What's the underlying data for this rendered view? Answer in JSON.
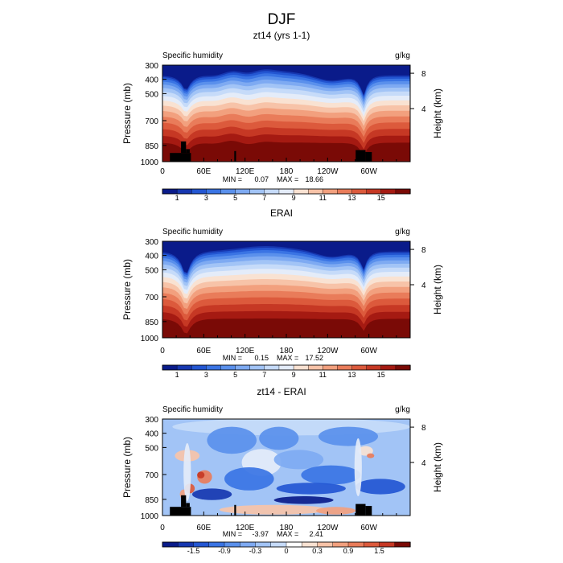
{
  "figure_title": "DJF",
  "chart_data": [
    {
      "type": "heatmap",
      "panel_title": "zt14 (yrs 1-1)",
      "left_label": "Specific humidity",
      "right_label": "g/kg",
      "ylabel": "Pressure (mb)",
      "y2label": "Height (km)",
      "y_ticks": [
        "300",
        "400",
        "500",
        "700",
        "850",
        "1000"
      ],
      "y2_ticks": [
        "8",
        "4"
      ],
      "x_ticks": [
        "0",
        "60E",
        "120E",
        "180",
        "120W",
        "60W"
      ],
      "min_label": "MIN =",
      "min_value": "0.07",
      "max_label": "MAX =",
      "max_value": "18.66",
      "colorbar_levels": [
        0.5,
        1,
        2,
        3,
        4,
        5,
        6,
        7,
        8,
        9,
        10,
        11,
        12,
        13,
        14,
        15,
        16
      ],
      "colorbar_labels": [
        "1",
        "3",
        "5",
        "7",
        "9",
        "11",
        "13",
        "15"
      ],
      "colors": [
        "#0a1b8a",
        "#1637b0",
        "#2356d2",
        "#3a74e4",
        "#5a90ec",
        "#7eaaf2",
        "#a2c4f6",
        "#c6dbf9",
        "#e4ecf9",
        "#f9e2d2",
        "#f7c3a8",
        "#f2a07e",
        "#e97c5a",
        "#dc5a3c",
        "#c63824",
        "#a51a12",
        "#7a0a06"
      ],
      "data_range": [
        0.07,
        18.66
      ],
      "topography": true
    },
    {
      "type": "heatmap",
      "panel_title": "ERAI",
      "left_label": "Specific humidity",
      "right_label": "g/kg",
      "ylabel": "Pressure (mb)",
      "y2label": "Height (km)",
      "y_ticks": [
        "300",
        "400",
        "500",
        "700",
        "850",
        "1000"
      ],
      "y2_ticks": [
        "8",
        "4"
      ],
      "x_ticks": [
        "0",
        "60E",
        "120E",
        "180",
        "120W",
        "60W"
      ],
      "min_label": "MIN =",
      "min_value": "0.15",
      "max_label": "MAX =",
      "max_value": "17.52",
      "colorbar_levels": [
        0.5,
        1,
        2,
        3,
        4,
        5,
        6,
        7,
        8,
        9,
        10,
        11,
        12,
        13,
        14,
        15,
        16
      ],
      "colorbar_labels": [
        "1",
        "3",
        "5",
        "7",
        "9",
        "11",
        "13",
        "15"
      ],
      "colors": [
        "#0a1b8a",
        "#1637b0",
        "#2356d2",
        "#3a74e4",
        "#5a90ec",
        "#7eaaf2",
        "#a2c4f6",
        "#c6dbf9",
        "#e4ecf9",
        "#f9e2d2",
        "#f7c3a8",
        "#f2a07e",
        "#e97c5a",
        "#dc5a3c",
        "#c63824",
        "#a51a12",
        "#7a0a06"
      ],
      "data_range": [
        0.15,
        17.52
      ],
      "topography": false
    },
    {
      "type": "heatmap",
      "panel_title": "zt14 - ERAI",
      "left_label": "Specific humidity",
      "right_label": "g/kg",
      "ylabel": "Pressure (mb)",
      "y2label": "Height (km)",
      "y_ticks": [
        "300",
        "400",
        "500",
        "700",
        "850",
        "1000"
      ],
      "y2_ticks": [
        "8",
        "4"
      ],
      "x_ticks": [
        "0",
        "60E",
        "120E",
        "180",
        "120W",
        "60W"
      ],
      "min_label": "MIN =",
      "min_value": "-3.97",
      "max_label": "MAX =",
      "max_value": "2.41",
      "colorbar_levels": [
        -1.8,
        -1.5,
        -1.2,
        -0.9,
        -0.6,
        -0.3,
        -0.1,
        0,
        0.1,
        0.3,
        0.6,
        0.9,
        1.2,
        1.5,
        1.8
      ],
      "colorbar_labels": [
        "-1.5",
        "-0.9",
        "-0.3",
        "0",
        "0.3",
        "0.9",
        "1.5"
      ],
      "colors": [
        "#0a1b8a",
        "#1637b0",
        "#2356d2",
        "#3a74e4",
        "#5a90ec",
        "#7eaaf2",
        "#a2c4f6",
        "#c6dbf9",
        "#ffffff",
        "#f9e2d2",
        "#f7c3a8",
        "#f2a07e",
        "#e97c5a",
        "#dc5a3c",
        "#c63824",
        "#7a0a06"
      ],
      "data_range": [
        -3.97,
        2.41
      ],
      "topography": true
    }
  ]
}
